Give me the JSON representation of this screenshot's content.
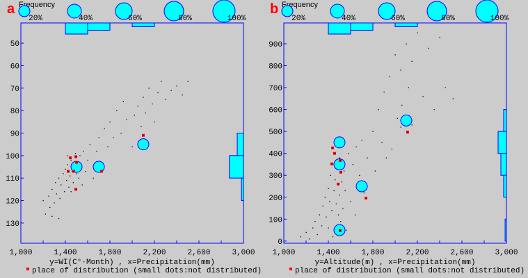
{
  "chart_data": [
    {
      "type": "scatter",
      "panel_label": "a",
      "frequency_label": "Frequency",
      "size_legend": [
        {
          "pct": 20,
          "label": "20%"
        },
        {
          "pct": 40,
          "label": "40%"
        },
        {
          "pct": 60,
          "label": "60%"
        },
        {
          "pct": 80,
          "label": "80%"
        },
        {
          "pct": 100,
          "label": "100%"
        }
      ],
      "xlabel": "y=WI(C°·Month) , x=Precipitation(mm)",
      "legend_text": "place of distribution (small dots:not distributed)",
      "xlim": [
        1000,
        3000
      ],
      "ylim": [
        41,
        139
      ],
      "y_inverted": true,
      "x_ticks": [
        {
          "value": 1000,
          "label": "1,000"
        },
        {
          "value": 1400,
          "label": "1,400"
        },
        {
          "value": 1800,
          "label": "1,800"
        },
        {
          "value": 2200,
          "label": "2,200"
        },
        {
          "value": 2600,
          "label": "2,600"
        },
        {
          "value": 3000,
          "label": "3,000"
        }
      ],
      "x_minor_ticks": [
        1200,
        1600,
        2000,
        2400,
        2800
      ],
      "y_ticks": [
        {
          "value": 50,
          "label": "50"
        },
        {
          "value": 60,
          "label": "60"
        },
        {
          "value": 70,
          "label": "70"
        },
        {
          "value": 80,
          "label": "80"
        },
        {
          "value": 90,
          "label": "90"
        },
        {
          "value": 100,
          "label": "100"
        },
        {
          "value": 110,
          "label": "110"
        },
        {
          "value": 120,
          "label": "120"
        },
        {
          "value": 130,
          "label": "130"
        }
      ],
      "circles": [
        {
          "x": 1500,
          "y": 105,
          "pct": 20
        },
        {
          "x": 1700,
          "y": 105,
          "pct": 20
        },
        {
          "x": 2100,
          "y": 95,
          "pct": 20
        }
      ],
      "distribution_points": [
        [
          1444,
          101
        ],
        [
          1494,
          100.5
        ],
        [
          1500,
          103
        ],
        [
          1475,
          107
        ],
        [
          1425,
          107
        ],
        [
          1494,
          115
        ],
        [
          1725,
          107
        ],
        [
          2100,
          91
        ]
      ],
      "other_points": [
        [
          1200,
          120
        ],
        [
          1220,
          126
        ],
        [
          1250,
          118
        ],
        [
          1260,
          123
        ],
        [
          1280,
          115
        ],
        [
          1300,
          121
        ],
        [
          1310,
          112
        ],
        [
          1320,
          117
        ],
        [
          1340,
          110
        ],
        [
          1350,
          119
        ],
        [
          1360,
          113
        ],
        [
          1380,
          108
        ],
        [
          1390,
          116
        ],
        [
          1400,
          106
        ],
        [
          1410,
          111
        ],
        [
          1420,
          104
        ],
        [
          1430,
          114
        ],
        [
          1440,
          109
        ],
        [
          1450,
          102
        ],
        [
          1460,
          107
        ],
        [
          1470,
          112
        ],
        [
          1480,
          104
        ],
        [
          1490,
          99
        ],
        [
          1500,
          108
        ],
        [
          1510,
          103
        ],
        [
          1520,
          110
        ],
        [
          1530,
          100
        ],
        [
          1540,
          105
        ],
        [
          1560,
          98
        ],
        [
          1580,
          107
        ],
        [
          1600,
          102
        ],
        [
          1620,
          95
        ],
        [
          1650,
          110
        ],
        [
          1680,
          98
        ],
        [
          1700,
          92
        ],
        [
          1720,
          103
        ],
        [
          1750,
          88
        ],
        [
          1780,
          96
        ],
        [
          1800,
          85
        ],
        [
          1830,
          92
        ],
        [
          1860,
          80
        ],
        [
          1900,
          90
        ],
        [
          1920,
          76
        ],
        [
          1950,
          84
        ],
        [
          2000,
          96
        ],
        [
          2020,
          82
        ],
        [
          2050,
          78
        ],
        [
          2080,
          87
        ],
        [
          2100,
          74
        ],
        [
          2120,
          81
        ],
        [
          2150,
          70
        ],
        [
          2180,
          77
        ],
        [
          2200,
          85
        ],
        [
          2230,
          72
        ],
        [
          2260,
          67
        ],
        [
          2300,
          75
        ],
        [
          2350,
          71
        ],
        [
          2400,
          69
        ],
        [
          2450,
          73
        ],
        [
          2500,
          67
        ],
        [
          1340,
          128
        ],
        [
          1280,
          127
        ],
        [
          1450,
          116
        ],
        [
          1550,
          113
        ],
        [
          1420,
          100
        ]
      ],
      "x_histogram": [
        {
          "from": 1400,
          "to": 1600,
          "pct": 50
        },
        {
          "from": 1600,
          "to": 1800,
          "pct": 33
        },
        {
          "from": 2000,
          "to": 2200,
          "pct": 17
        }
      ],
      "y_histogram": [
        {
          "from": 90,
          "to": 100,
          "pct": 28
        },
        {
          "from": 100,
          "to": 110,
          "pct": 63
        },
        {
          "from": 110,
          "to": 120,
          "pct": 9
        }
      ]
    },
    {
      "type": "scatter",
      "panel_label": "b",
      "frequency_label": "Frequency",
      "size_legend": [
        {
          "pct": 20,
          "label": "20%"
        },
        {
          "pct": 40,
          "label": "40%"
        },
        {
          "pct": 60,
          "label": "60%"
        },
        {
          "pct": 80,
          "label": "80%"
        },
        {
          "pct": 100,
          "label": "100%"
        }
      ],
      "xlabel": "y=Altitude(m) , x=Precipitation(mm)",
      "legend_text": "place of distribution (small dots:not distributed)",
      "xlim": [
        1000,
        3000
      ],
      "ylim": [
        -10,
        995
      ],
      "y_inverted": false,
      "x_ticks": [
        {
          "value": 1000,
          "label": "1,000"
        },
        {
          "value": 1400,
          "label": "1,400"
        },
        {
          "value": 1800,
          "label": "1,800"
        },
        {
          "value": 2200,
          "label": "2,200"
        },
        {
          "value": 2600,
          "label": "2,600"
        },
        {
          "value": 3000,
          "label": "3,000"
        }
      ],
      "x_minor_ticks": [
        1200,
        1600,
        2000,
        2400,
        2800
      ],
      "y_ticks": [
        {
          "value": 0,
          "label": "0"
        },
        {
          "value": 100,
          "label": "100"
        },
        {
          "value": 200,
          "label": "200"
        },
        {
          "value": 300,
          "label": "300"
        },
        {
          "value": 400,
          "label": "400"
        },
        {
          "value": 500,
          "label": "500"
        },
        {
          "value": 600,
          "label": "600"
        },
        {
          "value": 700,
          "label": "700"
        },
        {
          "value": 800,
          "label": "800"
        },
        {
          "value": 900,
          "label": "900"
        }
      ],
      "circles": [
        {
          "x": 1500,
          "y": 450,
          "pct": 20
        },
        {
          "x": 1500,
          "y": 350,
          "pct": 20
        },
        {
          "x": 1700,
          "y": 250,
          "pct": 20
        },
        {
          "x": 1500,
          "y": 50,
          "pct": 20
        },
        {
          "x": 2100,
          "y": 550,
          "pct": 20
        }
      ],
      "distribution_points": [
        [
          1438,
          425
        ],
        [
          1456,
          400
        ],
        [
          1506,
          367
        ],
        [
          1431,
          352
        ],
        [
          1512,
          314
        ],
        [
          1488,
          260
        ],
        [
          1738,
          196
        ],
        [
          1506,
          48
        ],
        [
          2112,
          497
        ]
      ],
      "other_points": [
        [
          1150,
          20
        ],
        [
          1200,
          40
        ],
        [
          1230,
          10
        ],
        [
          1260,
          60
        ],
        [
          1280,
          90
        ],
        [
          1300,
          30
        ],
        [
          1320,
          120
        ],
        [
          1340,
          70
        ],
        [
          1350,
          160
        ],
        [
          1370,
          200
        ],
        [
          1380,
          110
        ],
        [
          1400,
          240
        ],
        [
          1400,
          60
        ],
        [
          1410,
          180
        ],
        [
          1420,
          300
        ],
        [
          1430,
          140
        ],
        [
          1440,
          20
        ],
        [
          1450,
          230
        ],
        [
          1460,
          280
        ],
        [
          1470,
          170
        ],
        [
          1480,
          330
        ],
        [
          1490,
          120
        ],
        [
          1500,
          210
        ],
        [
          1500,
          380
        ],
        [
          1510,
          90
        ],
        [
          1520,
          270
        ],
        [
          1530,
          150
        ],
        [
          1540,
          320
        ],
        [
          1550,
          230
        ],
        [
          1560,
          50
        ],
        [
          1580,
          400
        ],
        [
          1600,
          180
        ],
        [
          1620,
          350
        ],
        [
          1640,
          120
        ],
        [
          1650,
          430
        ],
        [
          1680,
          300
        ],
        [
          1700,
          460
        ],
        [
          1720,
          220
        ],
        [
          1750,
          380
        ],
        [
          1800,
          500
        ],
        [
          1820,
          320
        ],
        [
          1850,
          600
        ],
        [
          1880,
          450
        ],
        [
          1900,
          680
        ],
        [
          1920,
          380
        ],
        [
          1950,
          750
        ],
        [
          1970,
          420
        ],
        [
          2000,
          850
        ],
        [
          2020,
          560
        ],
        [
          2050,
          780
        ],
        [
          2060,
          620
        ],
        [
          2100,
          900
        ],
        [
          2120,
          700
        ],
        [
          2150,
          820
        ],
        [
          2200,
          950
        ],
        [
          2250,
          660
        ],
        [
          2300,
          880
        ],
        [
          2350,
          600
        ],
        [
          2400,
          930
        ],
        [
          2450,
          700
        ],
        [
          2520,
          650
        ],
        [
          2050,
          520
        ],
        [
          2150,
          530
        ]
      ],
      "x_histogram": [
        {
          "from": 1400,
          "to": 1600,
          "pct": 50
        },
        {
          "from": 1600,
          "to": 1800,
          "pct": 33
        },
        {
          "from": 2000,
          "to": 2200,
          "pct": 17
        }
      ],
      "y_histogram": [
        {
          "from": 500,
          "to": 600,
          "pct": 12.5
        },
        {
          "from": 400,
          "to": 500,
          "pct": 37.5
        },
        {
          "from": 300,
          "to": 400,
          "pct": 25
        },
        {
          "from": 200,
          "to": 300,
          "pct": 12.5
        },
        {
          "from": 0,
          "to": 100,
          "pct": 6
        }
      ]
    }
  ],
  "colors": {
    "frame": "#0000ff",
    "fill": "#00ffff",
    "distribution": "#ff0000",
    "dot": "#000000",
    "label": "#ff0000",
    "background": "#cccccc"
  }
}
